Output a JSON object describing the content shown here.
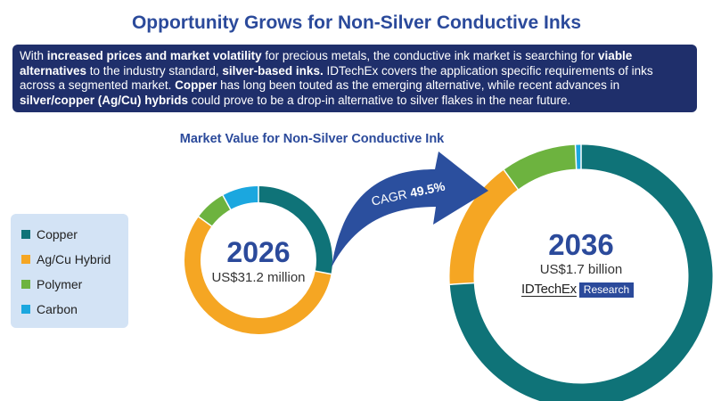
{
  "title": "Opportunity Grows for Non-Silver Conductive Inks",
  "banner": {
    "segments": [
      {
        "text": "With ",
        "bold": false
      },
      {
        "text": "increased prices and market volatility",
        "bold": true
      },
      {
        "text": " for precious metals, the conductive ink market is searching for ",
        "bold": false
      },
      {
        "text": "viable alternatives",
        "bold": true
      },
      {
        "text": " to the industry standard, ",
        "bold": false
      },
      {
        "text": "silver-based inks.",
        "bold": true
      },
      {
        "text": " IDTechEx covers the application specific requirements of inks across a segmented market. ",
        "bold": false
      },
      {
        "text": "Copper",
        "bold": true
      },
      {
        "text": " has long been touted as the emerging alternative, while recent advances in ",
        "bold": false
      },
      {
        "text": "silver/copper (Ag/Cu) hybrids",
        "bold": true
      },
      {
        "text": " could prove to be a drop-in alternative to silver flakes in the near future.",
        "bold": false
      }
    ]
  },
  "logo": {
    "main": "IDTechEx",
    "tag": "Research"
  },
  "chart_data": {
    "type": "pie",
    "title": "Market Value for Non-Silver Conductive Ink",
    "legend_position": "left",
    "legend": [
      {
        "name": "Copper",
        "color": "#0f7378"
      },
      {
        "name": "Ag/Cu Hybrid",
        "color": "#f5a623"
      },
      {
        "name": "Polymer",
        "color": "#6db33f"
      },
      {
        "name": "Carbon",
        "color": "#1ba7df"
      }
    ],
    "donuts": [
      {
        "year": "2026",
        "value_label": "US$31.2 million",
        "slices": [
          {
            "name": "Copper",
            "share": 28
          },
          {
            "name": "Ag/Cu Hybrid",
            "share": 57
          },
          {
            "name": "Polymer",
            "share": 7
          },
          {
            "name": "Carbon",
            "share": 8
          }
        ]
      },
      {
        "year": "2036",
        "value_label": "US$1.7 billion",
        "slices": [
          {
            "name": "Copper",
            "share": 74
          },
          {
            "name": "Ag/Cu Hybrid",
            "share": 16
          },
          {
            "name": "Polymer",
            "share": 9.3
          },
          {
            "name": "Carbon",
            "share": 0.7
          }
        ]
      }
    ],
    "annotation": {
      "label": "CAGR",
      "value": "49.5%"
    }
  }
}
